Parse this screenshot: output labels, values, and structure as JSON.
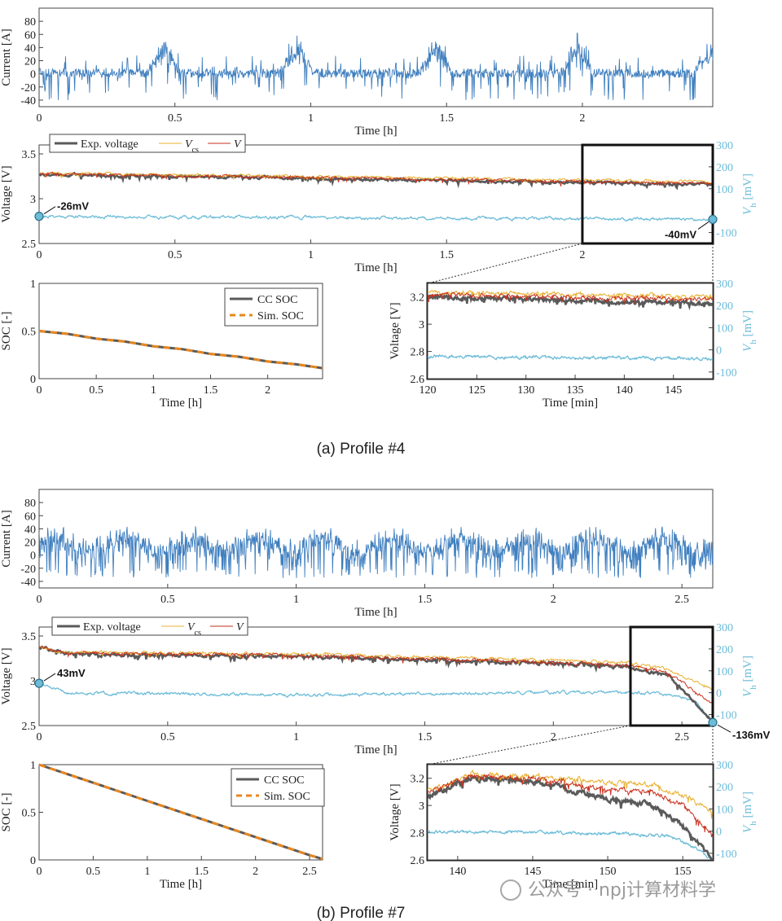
{
  "captions": [
    "(a) Profile #4",
    "(b) Profile #7"
  ],
  "watermark": "公众号 · npj计算材料学",
  "colors": {
    "current": "#3f7fbf",
    "exp_voltage": "#5a5a5a",
    "vcs": "#e8b030",
    "v": "#c8321e",
    "vh": "#6cbcd8",
    "cc_soc": "#5a5a5a",
    "sim_soc": "#e8871e"
  },
  "chart_data": [
    {
      "id": "a_current",
      "type": "line",
      "panel": "(a)",
      "xlabel": "Time [h]",
      "ylabel": "Current [A]",
      "xlim": [
        0,
        2.48
      ],
      "ylim": [
        -50,
        100
      ],
      "xticks": [
        0,
        0.5,
        1,
        1.5,
        2
      ],
      "yticks": [
        -40,
        -20,
        0,
        20,
        40,
        60,
        80
      ],
      "series": [
        {
          "key": "current",
          "mode": "profile4",
          "burst_peaks_A": [
            [
              0.46,
              60
            ],
            [
              0.95,
              60
            ],
            [
              1.46,
              58
            ],
            [
              1.98,
              60
            ],
            [
              2.47,
              62
            ]
          ],
          "range_A": [
            -40,
            62
          ]
        }
      ]
    },
    {
      "id": "a_voltage",
      "type": "line",
      "panel": "(a)",
      "xlabel": "Time [h]",
      "ylabel": "Voltage [V]",
      "y2label": "V_h [mV]",
      "xlim": [
        0,
        2.48
      ],
      "ylim": [
        2.5,
        3.6
      ],
      "y2lim": [
        -150,
        300
      ],
      "xticks": [
        0,
        0.5,
        1,
        1.5,
        2
      ],
      "yticks": [
        2.5,
        3,
        3.5
      ],
      "y2ticks": [
        -100,
        100,
        200,
        300
      ],
      "legend": [
        {
          "key": "exp",
          "label": "Exp. voltage"
        },
        {
          "key": "vcs",
          "label": "V",
          "sub": "cs"
        },
        {
          "key": "v",
          "label": "V"
        }
      ],
      "series": [
        {
          "key": "exp",
          "level_V": [
            [
              0,
              3.27
            ],
            [
              2.48,
              3.16
            ]
          ]
        },
        {
          "key": "vcs",
          "level_V": [
            [
              0,
              3.29
            ],
            [
              2.48,
              3.19
            ]
          ]
        },
        {
          "key": "v",
          "level_V": [
            [
              0,
              3.28
            ],
            [
              2.48,
              3.17
            ]
          ]
        },
        {
          "key": "vh",
          "level_mV": [
            [
              0,
              -26
            ],
            [
              2.48,
              -40
            ]
          ]
        }
      ],
      "annotations": [
        {
          "text": "-26mV",
          "x": 0,
          "value_mV": -26
        },
        {
          "text": "-40mV",
          "x": 2.48,
          "value_mV": -40
        }
      ],
      "zoom_box": {
        "x": [
          2.0,
          2.48
        ],
        "y": [
          2.5,
          3.6
        ]
      }
    },
    {
      "id": "a_soc",
      "type": "line",
      "panel": "(a)",
      "xlabel": "Time [h]",
      "ylabel": "SOC [-]",
      "xlim": [
        0,
        2.48
      ],
      "ylim": [
        0,
        1
      ],
      "xticks": [
        0,
        0.5,
        1,
        1.5,
        2
      ],
      "yticks": [
        0,
        0.5,
        1
      ],
      "legend": [
        {
          "key": "cc_soc",
          "label": "CC SOC"
        },
        {
          "key": "sim_soc",
          "label": "Sim. SOC"
        }
      ],
      "series": [
        {
          "key": "cc_soc",
          "x": [
            0,
            0.25,
            0.5,
            0.75,
            1.0,
            1.25,
            1.5,
            1.75,
            2.0,
            2.25,
            2.48
          ],
          "y": [
            0.5,
            0.47,
            0.42,
            0.39,
            0.34,
            0.31,
            0.26,
            0.23,
            0.18,
            0.15,
            0.11
          ]
        },
        {
          "key": "sim_soc",
          "same_as": "cc_soc"
        }
      ]
    },
    {
      "id": "a_zoom",
      "type": "line",
      "panel": "(a)",
      "xlabel": "Time [min]",
      "ylabel": "Voltage [V]",
      "y2label": "V_h [mV]",
      "xlim": [
        120,
        149
      ],
      "ylim": [
        2.6,
        3.3
      ],
      "y2lim": [
        -130,
        300
      ],
      "xticks": [
        120,
        125,
        130,
        135,
        140,
        145
      ],
      "yticks": [
        2.6,
        2.8,
        3,
        3.2
      ],
      "y2ticks": [
        -100,
        0,
        100,
        200,
        300
      ],
      "series": [
        {
          "key": "exp",
          "level_V": [
            [
              120,
              3.2
            ],
            [
              149,
              3.15
            ]
          ]
        },
        {
          "key": "vcs",
          "level_V": [
            [
              120,
              3.24
            ],
            [
              149,
              3.2
            ]
          ]
        },
        {
          "key": "v",
          "level_V": [
            [
              120,
              3.22
            ],
            [
              149,
              3.18
            ]
          ]
        },
        {
          "key": "vh",
          "level_mV": [
            [
              120,
              -30
            ],
            [
              149,
              -40
            ]
          ]
        }
      ]
    },
    {
      "id": "b_current",
      "type": "line",
      "panel": "(b)",
      "xlabel": "Time [h]",
      "ylabel": "Current [A]",
      "xlim": [
        0,
        2.62
      ],
      "ylim": [
        -50,
        100
      ],
      "xticks": [
        0,
        0.5,
        1,
        1.5,
        2,
        2.5
      ],
      "yticks": [
        -40,
        -20,
        0,
        20,
        40,
        60,
        80
      ],
      "series": [
        {
          "key": "current",
          "mode": "profile7",
          "range_A": [
            -40,
            55
          ]
        }
      ]
    },
    {
      "id": "b_voltage",
      "type": "line",
      "panel": "(b)",
      "xlabel": "Time [h]",
      "ylabel": "Voltage [V]",
      "y2label": "V_h [mV]",
      "xlim": [
        0,
        2.62
      ],
      "ylim": [
        2.5,
        3.6
      ],
      "y2lim": [
        -150,
        300
      ],
      "xticks": [
        0,
        0.5,
        1,
        1.5,
        2,
        2.5
      ],
      "yticks": [
        2.5,
        3,
        3.5
      ],
      "y2ticks": [
        -100,
        0,
        100,
        200,
        300
      ],
      "legend": [
        {
          "key": "exp",
          "label": "Exp. voltage"
        },
        {
          "key": "vcs",
          "label": "V",
          "sub": "cs"
        },
        {
          "key": "v",
          "label": "V"
        }
      ],
      "series": [
        {
          "key": "exp",
          "level_V": [
            [
              0,
              3.38
            ],
            [
              0.1,
              3.3
            ],
            [
              1.0,
              3.27
            ],
            [
              2.0,
              3.2
            ],
            [
              2.3,
              3.15
            ],
            [
              2.45,
              3.05
            ],
            [
              2.62,
              2.55
            ]
          ]
        },
        {
          "key": "vcs",
          "level_V": [
            [
              0,
              3.39
            ],
            [
              0.1,
              3.32
            ],
            [
              1.0,
              3.3
            ],
            [
              2.0,
              3.23
            ],
            [
              2.3,
              3.2
            ],
            [
              2.45,
              3.12
            ],
            [
              2.62,
              2.9
            ]
          ]
        },
        {
          "key": "v",
          "level_V": [
            [
              0,
              3.38
            ],
            [
              0.1,
              3.31
            ],
            [
              1.0,
              3.28
            ],
            [
              2.0,
              3.21
            ],
            [
              2.3,
              3.17
            ],
            [
              2.45,
              3.08
            ],
            [
              2.62,
              2.75
            ]
          ]
        },
        {
          "key": "vh",
          "level_mV": [
            [
              0,
              43
            ],
            [
              0.1,
              0
            ],
            [
              1.0,
              -10
            ],
            [
              2.0,
              0
            ],
            [
              2.4,
              0
            ],
            [
              2.55,
              -40
            ],
            [
              2.62,
              -136
            ]
          ]
        }
      ],
      "annotations": [
        {
          "text": "43mV",
          "x": 0,
          "value_mV": 43
        },
        {
          "text": "-136mV",
          "x": 2.62,
          "value_mV": -136
        }
      ],
      "zoom_box": {
        "x": [
          2.3,
          2.62
        ],
        "y": [
          2.5,
          3.6
        ]
      }
    },
    {
      "id": "b_soc",
      "type": "line",
      "panel": "(b)",
      "xlabel": "Time [h]",
      "ylabel": "SOC [-]",
      "xlim": [
        0,
        2.62
      ],
      "ylim": [
        0,
        1
      ],
      "xticks": [
        0,
        0.5,
        1,
        1.5,
        2,
        2.5
      ],
      "yticks": [
        0,
        0.5,
        1
      ],
      "legend": [
        {
          "key": "cc_soc",
          "label": "CC SOC"
        },
        {
          "key": "sim_soc",
          "label": "Sim. SOC"
        }
      ],
      "series": [
        {
          "key": "cc_soc",
          "x": [
            0,
            0.5,
            1.0,
            1.5,
            2.0,
            2.5,
            2.62
          ],
          "y": [
            1.0,
            0.81,
            0.62,
            0.43,
            0.24,
            0.05,
            0.01
          ]
        },
        {
          "key": "sim_soc",
          "same_as": "cc_soc"
        }
      ]
    },
    {
      "id": "b_zoom",
      "type": "line",
      "panel": "(b)",
      "xlabel": "Time [min]",
      "ylabel": "Voltage [V]",
      "y2label": "V_h [mV]",
      "xlim": [
        138,
        157
      ],
      "ylim": [
        2.6,
        3.3
      ],
      "y2lim": [
        -130,
        300
      ],
      "xticks": [
        140,
        145,
        150,
        155
      ],
      "yticks": [
        2.6,
        2.8,
        3,
        3.2
      ],
      "y2ticks": [
        -100,
        0,
        100,
        200,
        300
      ],
      "series": [
        {
          "key": "exp",
          "level_V": [
            [
              138,
              3.07
            ],
            [
              141,
              3.2
            ],
            [
              145,
              3.18
            ],
            [
              150,
              3.05
            ],
            [
              153,
              3.0
            ],
            [
              155,
              2.85
            ],
            [
              157,
              2.6
            ]
          ]
        },
        {
          "key": "vcs",
          "level_V": [
            [
              138,
              3.12
            ],
            [
              141,
              3.23
            ],
            [
              145,
              3.22
            ],
            [
              150,
              3.17
            ],
            [
              153,
              3.15
            ],
            [
              155,
              3.08
            ],
            [
              157,
              2.95
            ]
          ]
        },
        {
          "key": "v",
          "level_V": [
            [
              138,
              3.1
            ],
            [
              141,
              3.22
            ],
            [
              145,
              3.2
            ],
            [
              150,
              3.12
            ],
            [
              153,
              3.1
            ],
            [
              155,
              3.0
            ],
            [
              157,
              2.8
            ]
          ]
        },
        {
          "key": "vh",
          "level_mV": [
            [
              138,
              -5
            ],
            [
              145,
              -5
            ],
            [
              152,
              -15
            ],
            [
              154,
              -20
            ],
            [
              156,
              -80
            ],
            [
              157,
              -136
            ]
          ]
        }
      ]
    }
  ]
}
